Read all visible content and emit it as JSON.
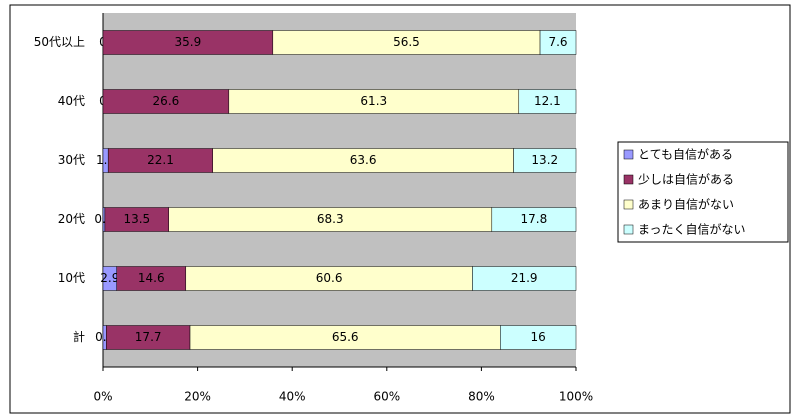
{
  "chart_data": {
    "type": "stacked-bar-horizontal",
    "categories": [
      "50代以上",
      "40代",
      "30代",
      "20代",
      "10代",
      "計"
    ],
    "series": [
      {
        "name": "とても自信がある",
        "color": "#9999ff",
        "values": [
          0,
          0,
          1.1,
          0.4,
          2.9,
          0.7
        ]
      },
      {
        "name": "少しは自信がある",
        "color": "#993366",
        "values": [
          35.9,
          26.6,
          22.1,
          13.5,
          14.6,
          17.7
        ]
      },
      {
        "name": "あまり自信がない",
        "color": "#ffffcc",
        "values": [
          56.5,
          61.3,
          63.6,
          68.3,
          60.6,
          65.6
        ]
      },
      {
        "name": "まったく自信がない",
        "color": "#ccffff",
        "values": [
          7.6,
          12.1,
          13.2,
          17.8,
          21.9,
          16
        ]
      }
    ],
    "xlim": [
      0,
      100
    ],
    "xticks": [
      {
        "value": 0,
        "label": "0%"
      },
      {
        "value": 20,
        "label": "20%"
      },
      {
        "value": 40,
        "label": "40%"
      },
      {
        "value": 60,
        "label": "60%"
      },
      {
        "value": 80,
        "label": "80%"
      },
      {
        "value": 100,
        "label": "100%"
      }
    ],
    "legend": "right"
  }
}
